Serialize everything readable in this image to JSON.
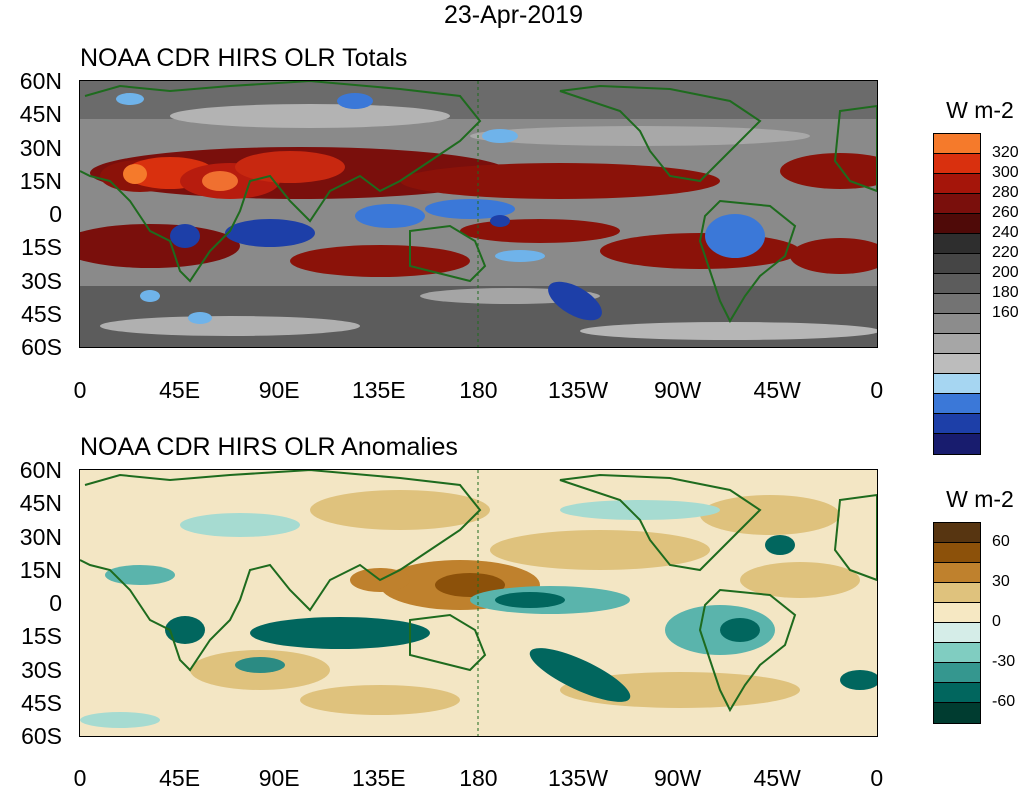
{
  "date": "23-Apr-2019",
  "panels": [
    {
      "title": "NOAA CDR HIRS OLR Totals",
      "units": "W m-2",
      "levels": [
        "320",
        "300",
        "280",
        "260",
        "240",
        "220",
        "200",
        "180",
        "160"
      ],
      "colors": [
        "#f57a2b",
        "#d9300e",
        "#a5150a",
        "#7a0f0c",
        "#4f0a08",
        "#2e2e2e",
        "#3f3f3f",
        "#4f4f4f",
        "#5f5f5f",
        "#707070",
        "#828282",
        "#959595",
        "#a8a8a8",
        "#bcbcbc",
        "#a6d6f2",
        "#6fb3ea",
        "#3b78d8",
        "#1d3fa8",
        "#181c6e"
      ]
    },
    {
      "title": "NOAA CDR HIRS OLR Anomalies",
      "units": "W m-2",
      "levels": [
        "60",
        "30",
        "0",
        "-30",
        "-60"
      ],
      "colors": [
        "#573511",
        "#8c510a",
        "#bf812d",
        "#dfc27d",
        "#f0dfb0",
        "#f6ecd2",
        "#d5ede8",
        "#a6dbd1",
        "#5ab4ac",
        "#2b8b83",
        "#01665e",
        "#003c30"
      ]
    }
  ],
  "lat_labels": [
    "60N",
    "45N",
    "30N",
    "15N",
    "0",
    "15S",
    "30S",
    "45S",
    "60S"
  ],
  "lon_labels": [
    "0",
    "45E",
    "90E",
    "135E",
    "180",
    "135W",
    "90W",
    "45W",
    "0"
  ]
}
